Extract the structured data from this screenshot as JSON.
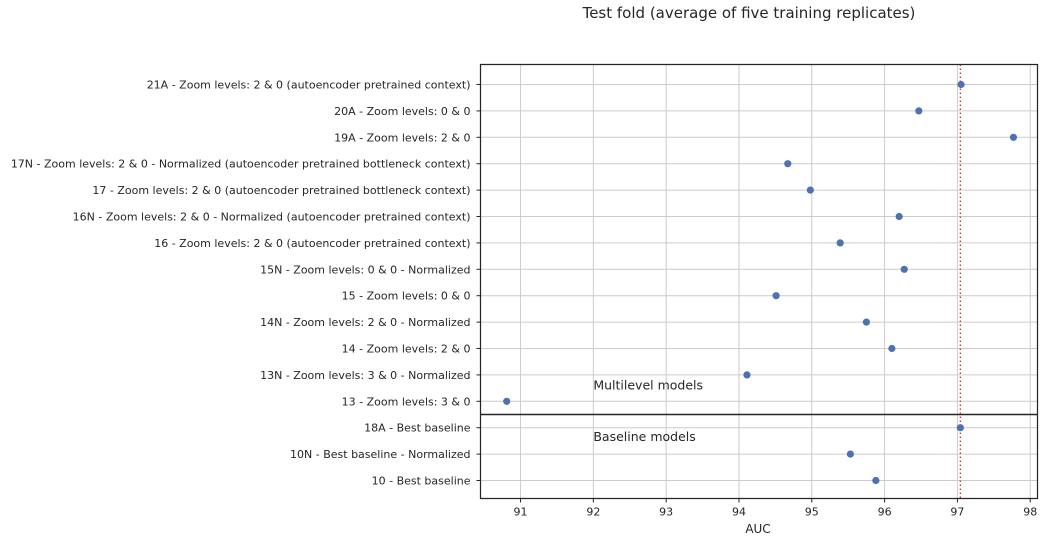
{
  "chart_data": {
    "type": "scatter",
    "title": "Test fold (average of five training replicates)",
    "xlabel": "AUC",
    "ylabel": "",
    "xlim": [
      90.45,
      98.1
    ],
    "xticks": [
      91,
      92,
      93,
      94,
      95,
      96,
      97,
      98
    ],
    "grid": true,
    "categories": [
      "21A - Zoom levels: 2 & 0 (autoencoder pretrained context)",
      "20A - Zoom levels: 0 & 0",
      "19A - Zoom levels: 2 & 0",
      "17N - Zoom levels: 2 & 0 - Normalized (autoencoder pretrained bottleneck context)",
      "17 - Zoom levels: 2 & 0 (autoencoder pretrained bottleneck context)",
      "16N - Zoom levels: 2 & 0 - Normalized (autoencoder pretrained context)",
      "16 - Zoom levels: 2 & 0 (autoencoder pretrained context)",
      "15N - Zoom levels: 0 & 0 - Normalized",
      "15 - Zoom levels: 0 & 0",
      "14N - Zoom levels: 2 & 0 - Normalized",
      "14 - Zoom levels: 2 & 0",
      "13N - Zoom levels: 3 & 0 - Normalized",
      "13 - Zoom levels: 3 & 0",
      "18A - Best baseline",
      "10N - Best baseline - Normalized",
      "10 - Best baseline"
    ],
    "values": [
      97.05,
      96.47,
      97.77,
      94.67,
      94.98,
      96.2,
      95.39,
      96.27,
      94.51,
      95.75,
      96.1,
      94.11,
      90.81,
      97.04,
      95.53,
      95.88
    ],
    "reference_line": {
      "x": 97.04,
      "style": "dotted",
      "color": "#d62728"
    },
    "group_separator": {
      "after_category_index": 12
    },
    "annotations": [
      "Multilevel models",
      "Baseline models"
    ],
    "marker_color": "#4c72b0"
  }
}
